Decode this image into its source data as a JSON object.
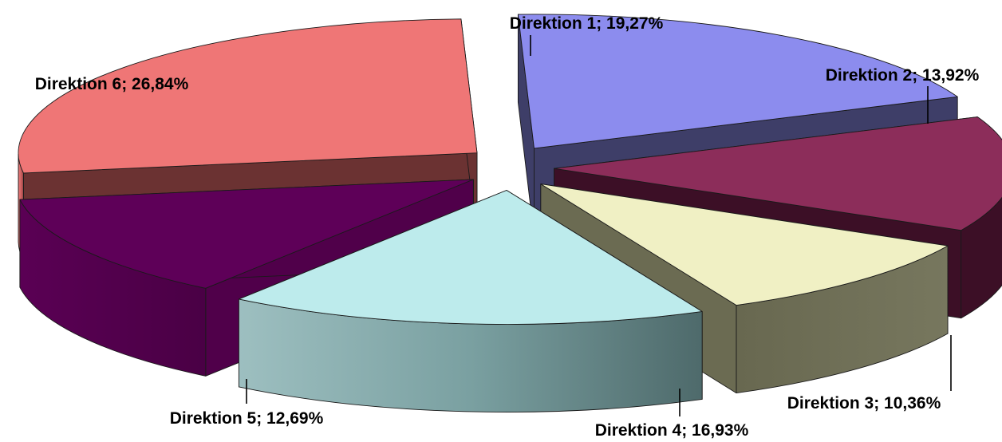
{
  "chart_data": {
    "type": "pie",
    "style": "3d-exploded",
    "slices": [
      {
        "name": "Direktion 1",
        "value": 19.27,
        "label": "Direktion 1; 19,27%",
        "top_color": "#8c8cee",
        "side_color": "#3e3e68"
      },
      {
        "name": "Direktion 2",
        "value": 13.92,
        "label": "Direktion 2; 13,92%",
        "top_color": "#8c2d5a",
        "side_color": "#3c0f26"
      },
      {
        "name": "Direktion 3",
        "value": 10.36,
        "label": "Direktion 3; 10,36%",
        "top_color": "#f0f0c4",
        "side_color": "#6b6b52"
      },
      {
        "name": "Direktion 4",
        "value": 16.93,
        "label": "Direktion 4; 16,93%",
        "top_color": "#bdebec",
        "side_color": "#7fa4a5"
      },
      {
        "name": "Direktion 5",
        "value": 12.69,
        "label": "Direktion 5; 12,69%",
        "top_color": "#5e0058",
        "side_color": "#50004a"
      },
      {
        "name": "Direktion 6",
        "value": 26.84,
        "label": "Direktion 6; 26,84%",
        "top_color": "#ef7676",
        "side_color": "#6b3232"
      }
    ],
    "legend": "none",
    "data_labels": "outside with leader lines"
  }
}
